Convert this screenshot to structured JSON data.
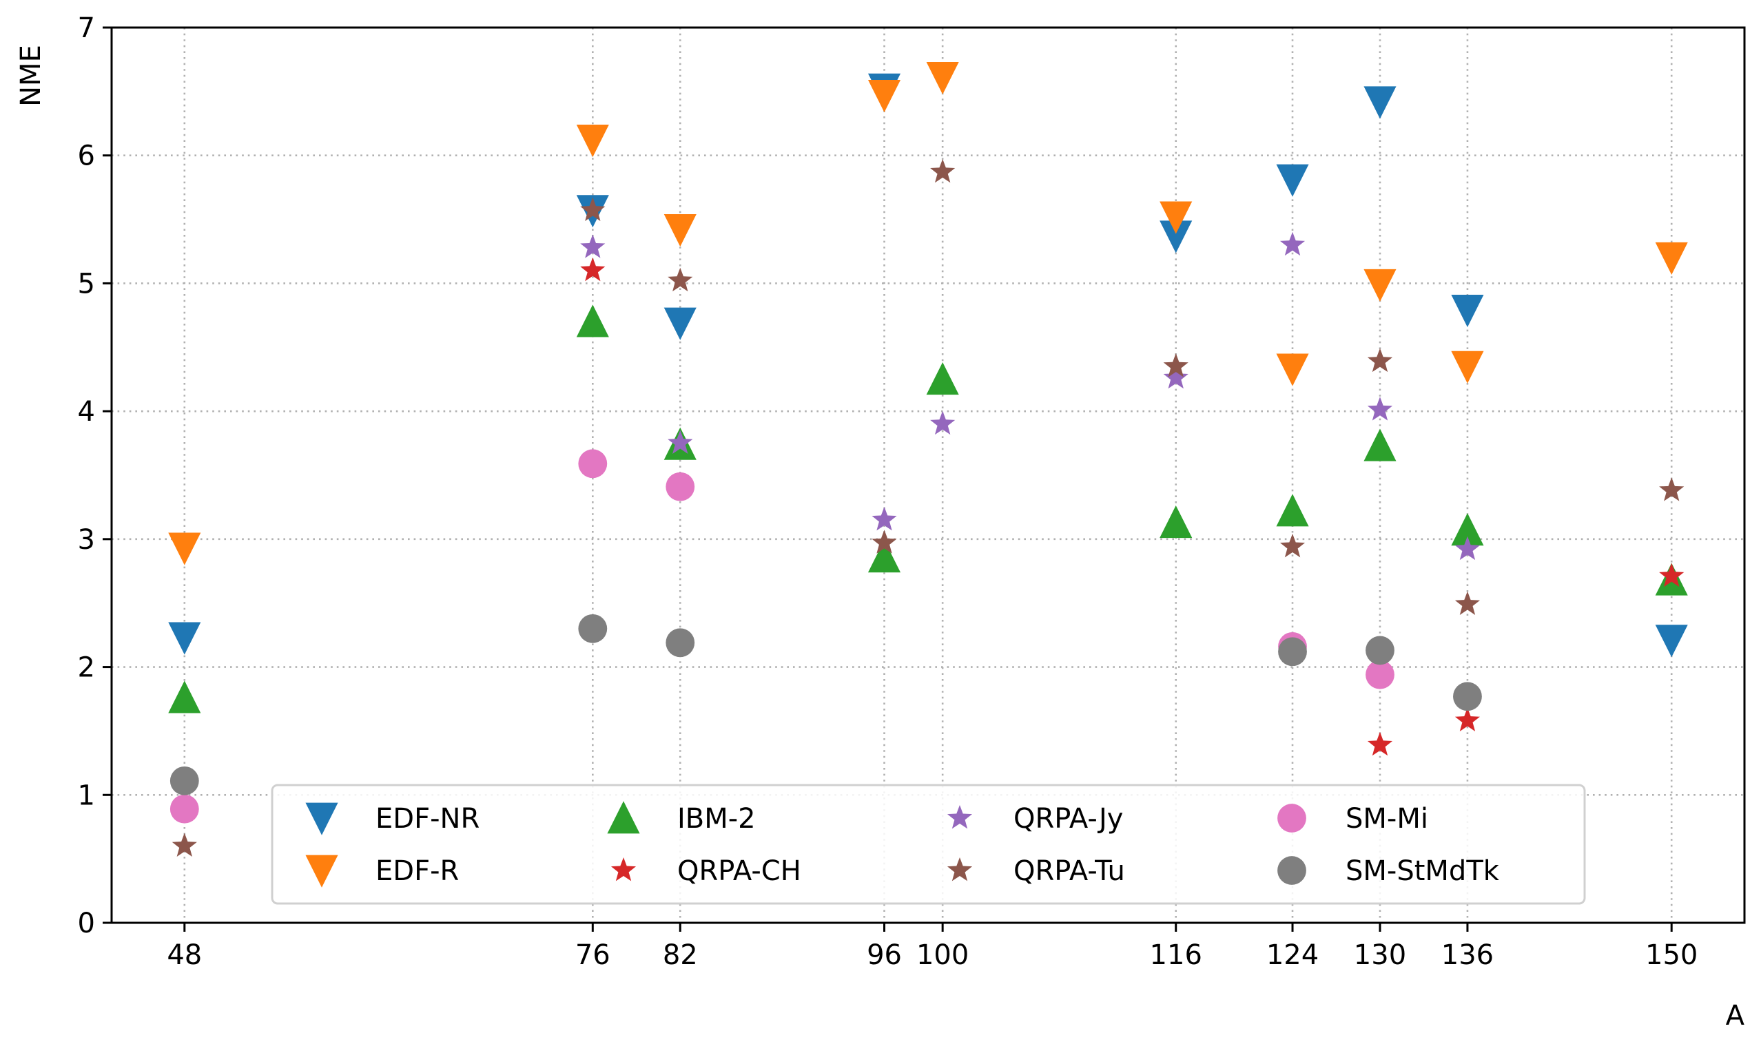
{
  "chart_data": {
    "type": "scatter",
    "title": "",
    "xlabel": "A",
    "ylabel": "NME",
    "x_ticks": [
      48,
      76,
      82,
      96,
      100,
      116,
      124,
      130,
      136,
      150
    ],
    "x_tick_labels": [
      "48",
      "76",
      "82",
      "96",
      "100",
      "116",
      "124",
      "130",
      "136",
      "150"
    ],
    "y_ticks": [
      0,
      1,
      2,
      3,
      4,
      5,
      6,
      7
    ],
    "xlim": [
      43,
      155
    ],
    "ylim": [
      0,
      7
    ],
    "grid": true,
    "legend_position": "lower-center",
    "series": [
      {
        "name": "EDF-NR",
        "marker": "triangle-down",
        "color": "#1f77b4",
        "points": [
          [
            48,
            2.23
          ],
          [
            76,
            5.57
          ],
          [
            82,
            4.69
          ],
          [
            96,
            6.52
          ],
          [
            116,
            5.37
          ],
          [
            124,
            5.81
          ],
          [
            130,
            6.42
          ],
          [
            136,
            4.79
          ],
          [
            150,
            2.21
          ]
        ]
      },
      {
        "name": "EDF-R",
        "marker": "triangle-down",
        "color": "#ff7f0e",
        "points": [
          [
            48,
            2.93
          ],
          [
            76,
            6.12
          ],
          [
            82,
            5.42
          ],
          [
            96,
            6.47
          ],
          [
            100,
            6.61
          ],
          [
            116,
            5.52
          ],
          [
            124,
            4.33
          ],
          [
            130,
            4.99
          ],
          [
            136,
            4.35
          ],
          [
            150,
            5.2
          ]
        ]
      },
      {
        "name": "IBM-2",
        "marker": "triangle-up",
        "color": "#2ca02c",
        "points": [
          [
            48,
            1.76
          ],
          [
            76,
            4.7
          ],
          [
            82,
            3.74
          ],
          [
            96,
            2.86
          ],
          [
            100,
            4.25
          ],
          [
            116,
            3.13
          ],
          [
            124,
            3.22
          ],
          [
            130,
            3.73
          ],
          [
            136,
            3.07
          ],
          [
            150,
            2.68
          ]
        ]
      },
      {
        "name": "QRPA-CH",
        "marker": "star",
        "color": "#d62728",
        "points": [
          [
            76,
            5.1
          ],
          [
            130,
            1.39
          ],
          [
            136,
            1.58
          ],
          [
            150,
            2.71
          ]
        ]
      },
      {
        "name": "QRPA-Jy",
        "marker": "star",
        "color": "#9467bd",
        "points": [
          [
            76,
            5.28
          ],
          [
            82,
            3.75
          ],
          [
            96,
            3.15
          ],
          [
            100,
            3.9
          ],
          [
            116,
            4.26
          ],
          [
            124,
            5.3
          ],
          [
            130,
            4.01
          ],
          [
            136,
            2.92
          ]
        ]
      },
      {
        "name": "QRPA-Tu",
        "marker": "star",
        "color": "#8c564b",
        "points": [
          [
            48,
            0.6
          ],
          [
            76,
            5.57
          ],
          [
            82,
            5.02
          ],
          [
            96,
            2.97
          ],
          [
            100,
            5.87
          ],
          [
            116,
            4.35
          ],
          [
            124,
            2.94
          ],
          [
            130,
            4.39
          ],
          [
            136,
            2.49
          ],
          [
            150,
            3.38
          ]
        ]
      },
      {
        "name": "SM-Mi",
        "marker": "circle",
        "color": "#e377c2",
        "points": [
          [
            48,
            0.89
          ],
          [
            76,
            3.59
          ],
          [
            82,
            3.41
          ],
          [
            124,
            2.16
          ],
          [
            130,
            1.94
          ]
        ]
      },
      {
        "name": "SM-StMdTk",
        "marker": "circle",
        "color": "#7f7f7f",
        "points": [
          [
            48,
            1.11
          ],
          [
            76,
            2.3
          ],
          [
            82,
            2.19
          ],
          [
            124,
            2.12
          ],
          [
            130,
            2.13
          ],
          [
            136,
            1.77
          ]
        ]
      }
    ]
  }
}
